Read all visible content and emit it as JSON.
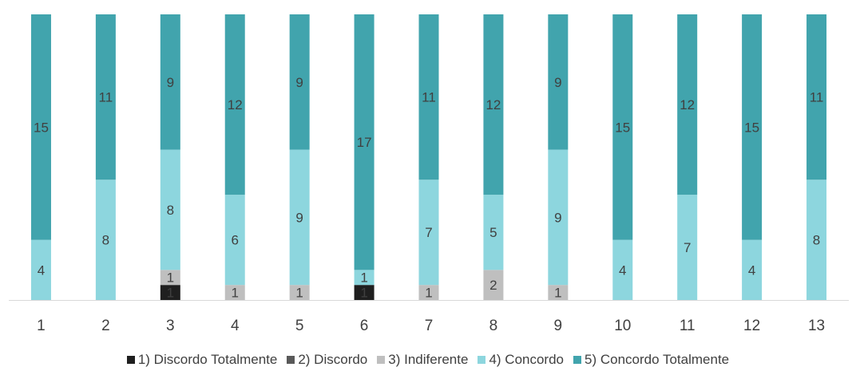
{
  "chart_data": {
    "type": "bar",
    "stacked": true,
    "title": "",
    "xlabel": "",
    "ylabel": "",
    "categories": [
      "1",
      "2",
      "3",
      "4",
      "5",
      "6",
      "7",
      "8",
      "9",
      "10",
      "11",
      "12",
      "13"
    ],
    "ylim": [
      0,
      19
    ],
    "grid": false,
    "legend_position": "bottom",
    "series": [
      {
        "name": "1) Discordo Totalmente",
        "color": "#1f1f1f",
        "values": [
          0,
          0,
          1,
          0,
          0,
          1,
          0,
          0,
          0,
          0,
          0,
          0,
          0
        ]
      },
      {
        "name": "2) Discordo",
        "color": "#595959",
        "values": [
          0,
          0,
          0,
          0,
          0,
          0,
          0,
          0,
          0,
          0,
          0,
          0,
          0
        ]
      },
      {
        "name": "3) Indiferente",
        "color": "#bfbfbf",
        "values": [
          0,
          0,
          1,
          1,
          1,
          0,
          1,
          2,
          1,
          0,
          0,
          0,
          0
        ]
      },
      {
        "name": "4) Concordo",
        "color": "#8dd6de",
        "values": [
          4,
          8,
          8,
          6,
          9,
          1,
          7,
          5,
          9,
          4,
          7,
          4,
          8
        ]
      },
      {
        "name": "5) Concordo Totalmente",
        "color": "#41a4ad",
        "values": [
          15,
          11,
          9,
          12,
          9,
          17,
          11,
          12,
          9,
          15,
          12,
          15,
          11
        ]
      }
    ],
    "data_label_color": "#404040",
    "axis_color": "#d9d9d9"
  }
}
